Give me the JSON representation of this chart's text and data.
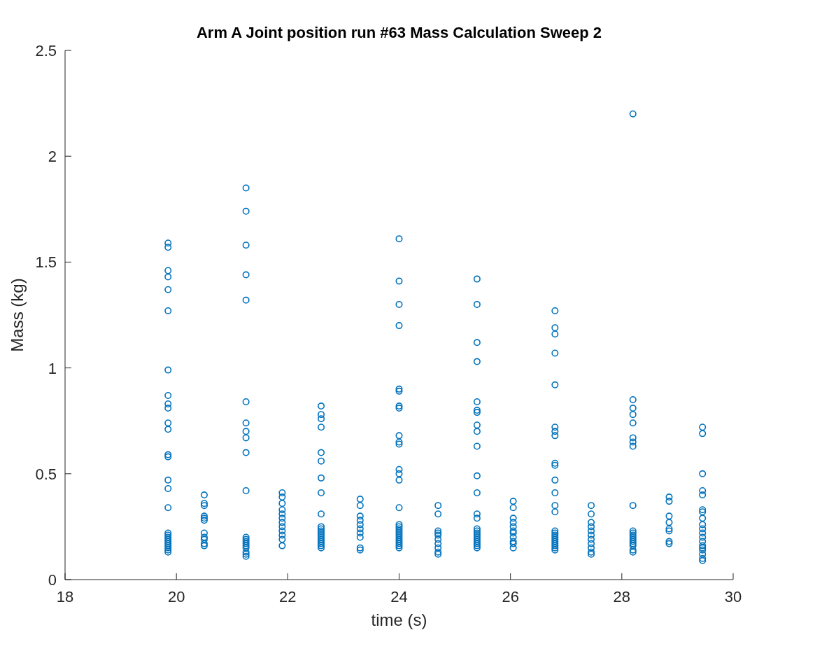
{
  "chart_data": {
    "type": "scatter",
    "title": "Arm A Joint position run #63 Mass Calculation Sweep 2",
    "xlabel": "time (s)",
    "ylabel": "Mass (kg)",
    "xlim": [
      18,
      30
    ],
    "xticks": [
      18,
      20,
      22,
      24,
      26,
      28,
      30
    ],
    "ylim": [
      0,
      2.5
    ],
    "yticks": [
      0,
      0.5,
      1,
      1.5,
      2,
      2.5
    ],
    "marker": "circle",
    "series": [
      {
        "color": "#0072bd",
        "x": [
          19.85,
          19.85,
          19.85,
          19.85,
          19.85,
          19.85,
          19.85,
          19.85,
          19.85,
          19.85,
          19.85,
          19.85,
          19.85,
          19.85,
          19.85,
          19.85,
          19.85,
          19.85,
          19.85,
          19.85,
          19.85,
          19.85,
          19.85,
          19.85,
          19.85,
          19.85,
          19.85,
          20.5,
          20.5,
          20.5,
          20.5,
          20.5,
          20.5,
          20.5,
          20.5,
          20.5,
          20.5,
          20.5,
          21.25,
          21.25,
          21.25,
          21.25,
          21.25,
          21.25,
          21.25,
          21.25,
          21.25,
          21.25,
          21.25,
          21.25,
          21.25,
          21.25,
          21.25,
          21.25,
          21.25,
          21.25,
          21.25,
          21.25,
          21.9,
          21.9,
          21.9,
          21.9,
          21.9,
          21.9,
          21.9,
          21.9,
          21.9,
          21.9,
          21.9,
          21.9,
          22.6,
          22.6,
          22.6,
          22.6,
          22.6,
          22.6,
          22.6,
          22.6,
          22.6,
          22.6,
          22.6,
          22.6,
          22.6,
          22.6,
          22.6,
          22.6,
          22.6,
          22.6,
          22.6,
          22.6,
          23.3,
          23.3,
          23.3,
          23.3,
          23.3,
          23.3,
          23.3,
          23.3,
          23.3,
          23.3,
          24,
          24,
          24,
          24,
          24,
          24,
          24,
          24,
          24,
          24,
          24,
          24,
          24,
          24,
          24,
          24,
          24,
          24,
          24,
          24,
          24,
          24,
          24,
          24,
          24,
          24,
          24,
          24.7,
          24.7,
          24.7,
          24.7,
          24.7,
          24.7,
          24.7,
          24.7,
          24.7,
          24.7,
          25.4,
          25.4,
          25.4,
          25.4,
          25.4,
          25.4,
          25.4,
          25.4,
          25.4,
          25.4,
          25.4,
          25.4,
          25.4,
          25.4,
          25.4,
          25.4,
          25.4,
          25.4,
          25.4,
          25.4,
          25.4,
          25.4,
          25.4,
          25.4,
          26.05,
          26.05,
          26.05,
          26.05,
          26.05,
          26.05,
          26.05,
          26.05,
          26.05,
          26.05,
          26.05,
          26.8,
          26.8,
          26.8,
          26.8,
          26.8,
          26.8,
          26.8,
          26.8,
          26.8,
          26.8,
          26.8,
          26.8,
          26.8,
          26.8,
          26.8,
          26.8,
          26.8,
          26.8,
          26.8,
          26.8,
          26.8,
          26.8,
          26.8,
          26.8,
          27.45,
          27.45,
          27.45,
          27.45,
          27.45,
          27.45,
          27.45,
          27.45,
          27.45,
          27.45,
          27.45,
          28.2,
          28.2,
          28.2,
          28.2,
          28.2,
          28.2,
          28.2,
          28.2,
          28.2,
          28.2,
          28.2,
          28.2,
          28.2,
          28.2,
          28.2,
          28.2,
          28.2,
          28.2,
          28.2,
          28.85,
          28.85,
          28.85,
          28.85,
          28.85,
          28.85,
          28.85,
          28.85,
          29.45,
          29.45,
          29.45,
          29.45,
          29.45,
          29.45,
          29.45,
          29.45,
          29.45,
          29.45,
          29.45,
          29.45,
          29.45,
          29.45,
          29.45,
          29.45,
          29.45,
          29.45,
          29.45
        ],
        "values": [
          1.59,
          1.57,
          1.46,
          1.43,
          1.37,
          1.27,
          0.99,
          0.87,
          0.83,
          0.81,
          0.74,
          0.71,
          0.59,
          0.58,
          0.47,
          0.43,
          0.34,
          0.22,
          0.21,
          0.2,
          0.19,
          0.18,
          0.17,
          0.16,
          0.15,
          0.14,
          0.13,
          0.4,
          0.36,
          0.35,
          0.3,
          0.29,
          0.28,
          0.22,
          0.2,
          0.19,
          0.17,
          0.16,
          1.85,
          1.74,
          1.58,
          1.44,
          1.32,
          0.84,
          0.74,
          0.7,
          0.67,
          0.6,
          0.42,
          0.2,
          0.19,
          0.18,
          0.17,
          0.16,
          0.15,
          0.13,
          0.12,
          0.11,
          0.41,
          0.39,
          0.36,
          0.33,
          0.31,
          0.29,
          0.27,
          0.25,
          0.23,
          0.21,
          0.19,
          0.16,
          0.82,
          0.78,
          0.76,
          0.72,
          0.6,
          0.56,
          0.48,
          0.41,
          0.31,
          0.25,
          0.24,
          0.23,
          0.22,
          0.21,
          0.2,
          0.19,
          0.18,
          0.17,
          0.16,
          0.15,
          0.38,
          0.35,
          0.3,
          0.28,
          0.26,
          0.24,
          0.22,
          0.2,
          0.15,
          0.14,
          1.61,
          1.41,
          1.3,
          1.2,
          0.9,
          0.89,
          0.82,
          0.81,
          0.68,
          0.65,
          0.64,
          0.52,
          0.5,
          0.47,
          0.34,
          0.26,
          0.25,
          0.24,
          0.23,
          0.22,
          0.21,
          0.2,
          0.19,
          0.18,
          0.17,
          0.16,
          0.15,
          0.35,
          0.31,
          0.23,
          0.22,
          0.21,
          0.19,
          0.17,
          0.15,
          0.13,
          0.12,
          1.42,
          1.3,
          1.12,
          1.03,
          0.84,
          0.8,
          0.79,
          0.73,
          0.7,
          0.63,
          0.49,
          0.41,
          0.31,
          0.29,
          0.24,
          0.23,
          0.22,
          0.21,
          0.2,
          0.19,
          0.18,
          0.17,
          0.16,
          0.15,
          0.37,
          0.34,
          0.29,
          0.27,
          0.25,
          0.23,
          0.22,
          0.2,
          0.18,
          0.17,
          0.15,
          1.27,
          1.19,
          1.16,
          1.07,
          0.92,
          0.72,
          0.7,
          0.68,
          0.55,
          0.54,
          0.47,
          0.41,
          0.35,
          0.32,
          0.23,
          0.22,
          0.21,
          0.2,
          0.19,
          0.18,
          0.17,
          0.16,
          0.15,
          0.14,
          0.35,
          0.31,
          0.27,
          0.25,
          0.23,
          0.21,
          0.19,
          0.17,
          0.15,
          0.13,
          0.12,
          2.2,
          0.85,
          0.81,
          0.78,
          0.74,
          0.67,
          0.65,
          0.63,
          0.35,
          0.23,
          0.22,
          0.21,
          0.2,
          0.19,
          0.18,
          0.17,
          0.16,
          0.14,
          0.13,
          0.39,
          0.37,
          0.3,
          0.27,
          0.24,
          0.23,
          0.18,
          0.17,
          0.72,
          0.69,
          0.5,
          0.42,
          0.4,
          0.33,
          0.32,
          0.29,
          0.26,
          0.24,
          0.22,
          0.2,
          0.18,
          0.16,
          0.15,
          0.14,
          0.12,
          0.1,
          0.09
        ]
      }
    ]
  }
}
